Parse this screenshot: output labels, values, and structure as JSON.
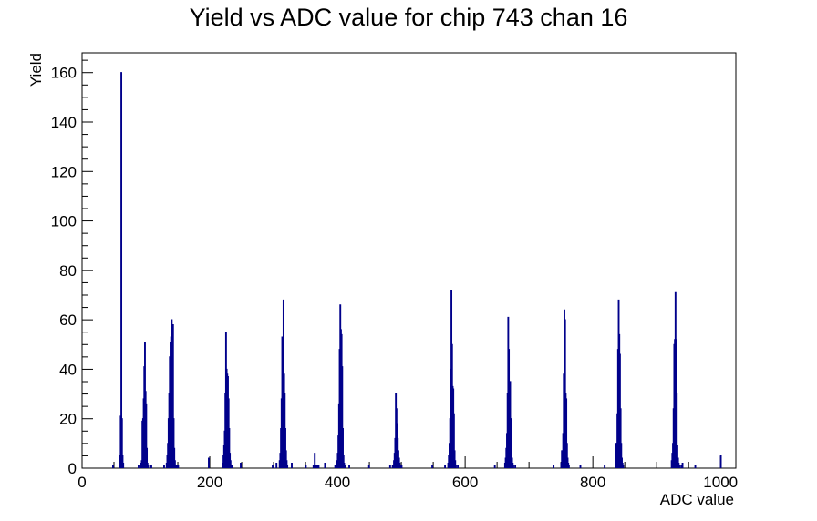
{
  "chart_data": {
    "type": "histogram",
    "title": "Yield vs ADC value for chip 743 chan 16",
    "xlabel": "ADC value",
    "ylabel": "Yield",
    "xlim": [
      0,
      1024
    ],
    "ylim": [
      0,
      168
    ],
    "x_ticks": [
      0,
      200,
      400,
      600,
      800,
      1000
    ],
    "y_ticks": [
      0,
      20,
      40,
      60,
      80,
      100,
      120,
      140,
      160
    ],
    "grid": false,
    "bin_width": 1,
    "line_color": "#00008b",
    "bins": [
      [
        48,
        1
      ],
      [
        58,
        5
      ],
      [
        59,
        5
      ],
      [
        60,
        21
      ],
      [
        61,
        160
      ],
      [
        62,
        20
      ],
      [
        63,
        5
      ],
      [
        64,
        2
      ],
      [
        88,
        1
      ],
      [
        92,
        2
      ],
      [
        93,
        3
      ],
      [
        94,
        19
      ],
      [
        95,
        20
      ],
      [
        96,
        28
      ],
      [
        97,
        41
      ],
      [
        98,
        51
      ],
      [
        99,
        31
      ],
      [
        100,
        26
      ],
      [
        101,
        8
      ],
      [
        102,
        2
      ],
      [
        103,
        1
      ],
      [
        108,
        1
      ],
      [
        128,
        1
      ],
      [
        132,
        2
      ],
      [
        133,
        5
      ],
      [
        134,
        10
      ],
      [
        135,
        20
      ],
      [
        136,
        30
      ],
      [
        137,
        45
      ],
      [
        138,
        51
      ],
      [
        139,
        53
      ],
      [
        140,
        60
      ],
      [
        141,
        14
      ],
      [
        142,
        58
      ],
      [
        143,
        20
      ],
      [
        144,
        8
      ],
      [
        145,
        3
      ],
      [
        146,
        1
      ],
      [
        148,
        1
      ],
      [
        150,
        1
      ],
      [
        198,
        4
      ],
      [
        220,
        2
      ],
      [
        221,
        5
      ],
      [
        222,
        9
      ],
      [
        223,
        15
      ],
      [
        224,
        30
      ],
      [
        225,
        55
      ],
      [
        226,
        40
      ],
      [
        227,
        38
      ],
      [
        228,
        37
      ],
      [
        229,
        28
      ],
      [
        230,
        16
      ],
      [
        231,
        6
      ],
      [
        232,
        3
      ],
      [
        233,
        1
      ],
      [
        235,
        1
      ],
      [
        248,
        2
      ],
      [
        298,
        1
      ],
      [
        304,
        2
      ],
      [
        309,
        3
      ],
      [
        310,
        6
      ],
      [
        311,
        16
      ],
      [
        312,
        28
      ],
      [
        313,
        53
      ],
      [
        314,
        40
      ],
      [
        315,
        68
      ],
      [
        316,
        38
      ],
      [
        317,
        30
      ],
      [
        318,
        16
      ],
      [
        319,
        7
      ],
      [
        320,
        3
      ],
      [
        321,
        1
      ],
      [
        328,
        2
      ],
      [
        350,
        1
      ],
      [
        362,
        1
      ],
      [
        363,
        1
      ],
      [
        364,
        6
      ],
      [
        365,
        1
      ],
      [
        366,
        1
      ],
      [
        368,
        1
      ],
      [
        370,
        1
      ],
      [
        380,
        2
      ],
      [
        396,
        1
      ],
      [
        399,
        3
      ],
      [
        400,
        6
      ],
      [
        401,
        13
      ],
      [
        402,
        26
      ],
      [
        403,
        48
      ],
      [
        404,
        66
      ],
      [
        405,
        56
      ],
      [
        406,
        54
      ],
      [
        407,
        41
      ],
      [
        408,
        16
      ],
      [
        409,
        5
      ],
      [
        410,
        2
      ],
      [
        411,
        1
      ],
      [
        418,
        1
      ],
      [
        449,
        1
      ],
      [
        482,
        1
      ],
      [
        486,
        1
      ],
      [
        488,
        3
      ],
      [
        489,
        6
      ],
      [
        490,
        12
      ],
      [
        491,
        30
      ],
      [
        492,
        24
      ],
      [
        493,
        18
      ],
      [
        494,
        12
      ],
      [
        495,
        7
      ],
      [
        496,
        4
      ],
      [
        497,
        2
      ],
      [
        498,
        1
      ],
      [
        500,
        1
      ],
      [
        548,
        1
      ],
      [
        568,
        1
      ],
      [
        573,
        2
      ],
      [
        574,
        5
      ],
      [
        575,
        10
      ],
      [
        576,
        20
      ],
      [
        577,
        40
      ],
      [
        578,
        72
      ],
      [
        579,
        50
      ],
      [
        580,
        33
      ],
      [
        581,
        32
      ],
      [
        582,
        22
      ],
      [
        583,
        7
      ],
      [
        584,
        3
      ],
      [
        585,
        1
      ],
      [
        588,
        1
      ],
      [
        646,
        1
      ],
      [
        662,
        2
      ],
      [
        663,
        4
      ],
      [
        664,
        8
      ],
      [
        665,
        14
      ],
      [
        666,
        30
      ],
      [
        667,
        61
      ],
      [
        668,
        48
      ],
      [
        669,
        30
      ],
      [
        670,
        35
      ],
      [
        671,
        20
      ],
      [
        672,
        10
      ],
      [
        673,
        4
      ],
      [
        674,
        2
      ],
      [
        675,
        1
      ],
      [
        678,
        1
      ],
      [
        738,
        1
      ],
      [
        750,
        2
      ],
      [
        751,
        7
      ],
      [
        752,
        7
      ],
      [
        753,
        14
      ],
      [
        754,
        38
      ],
      [
        755,
        64
      ],
      [
        756,
        60
      ],
      [
        757,
        30
      ],
      [
        758,
        28
      ],
      [
        759,
        10
      ],
      [
        760,
        4
      ],
      [
        761,
        2
      ],
      [
        762,
        1
      ],
      [
        780,
        1
      ],
      [
        818,
        1
      ],
      [
        835,
        5
      ],
      [
        836,
        10
      ],
      [
        837,
        10
      ],
      [
        838,
        22
      ],
      [
        839,
        48
      ],
      [
        840,
        68
      ],
      [
        841,
        54
      ],
      [
        842,
        46
      ],
      [
        843,
        24
      ],
      [
        844,
        10
      ],
      [
        845,
        4
      ],
      [
        846,
        2
      ],
      [
        847,
        1
      ],
      [
        923,
        3
      ],
      [
        924,
        6
      ],
      [
        925,
        10
      ],
      [
        926,
        24
      ],
      [
        927,
        50
      ],
      [
        928,
        52
      ],
      [
        929,
        71
      ],
      [
        930,
        52
      ],
      [
        931,
        30
      ],
      [
        932,
        9
      ],
      [
        933,
        4
      ],
      [
        934,
        2
      ],
      [
        935,
        1
      ],
      [
        938,
        1
      ],
      [
        940,
        2
      ],
      [
        960,
        1
      ],
      [
        1000,
        5
      ]
    ]
  }
}
